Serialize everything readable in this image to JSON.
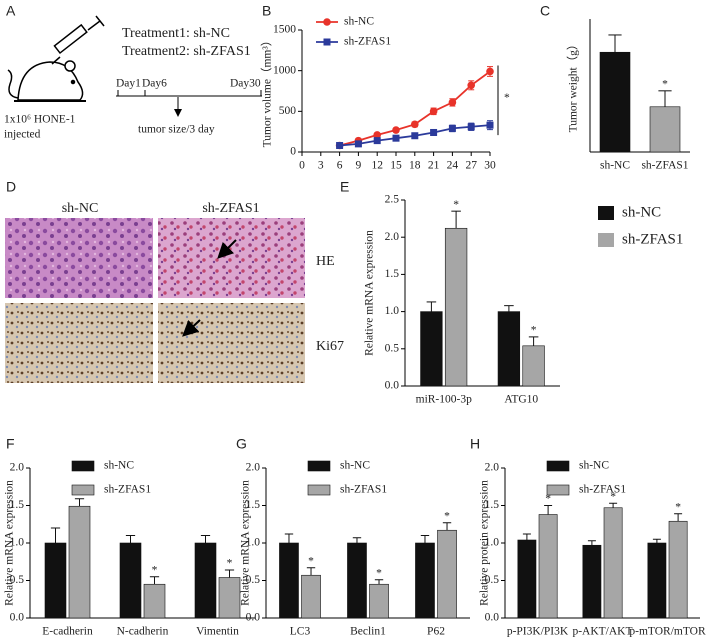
{
  "panels": {
    "A": {
      "label": "A",
      "treatments": [
        "Treatment1: sh-NC",
        "Treatment2: sh-ZFAS1"
      ],
      "days": [
        "Day1",
        "Day6",
        "Day30"
      ],
      "injection": [
        "1x10⁶ HONE-1",
        "injected"
      ],
      "measure": "tumor size/3 day"
    },
    "D": {
      "label": "D",
      "columns": [
        "sh-NC",
        "sh-ZFAS1"
      ],
      "rows": [
        "HE",
        "Ki67"
      ]
    }
  },
  "chart_data": [
    {
      "panel": "B",
      "type": "line",
      "ylabel": "Tumor volume（mm³）",
      "x": [
        6,
        9,
        12,
        15,
        18,
        21,
        24,
        27,
        30
      ],
      "series": [
        {
          "name": "sh-NC",
          "color": "#e8332a",
          "marker": "circle",
          "values": [
            80,
            140,
            210,
            270,
            340,
            500,
            610,
            820,
            990
          ],
          "errors": [
            10,
            15,
            20,
            25,
            30,
            40,
            45,
            55,
            60
          ]
        },
        {
          "name": "sh-ZFAS1",
          "color": "#2b3a9b",
          "marker": "square",
          "values": [
            80,
            100,
            140,
            170,
            200,
            240,
            290,
            310,
            330
          ],
          "errors": [
            10,
            12,
            15,
            20,
            25,
            35,
            40,
            45,
            55
          ]
        }
      ],
      "xlim": [
        0,
        30
      ],
      "xticks": [
        0,
        3,
        6,
        9,
        12,
        15,
        18,
        21,
        24,
        27,
        30
      ],
      "ylim": [
        0,
        1500
      ],
      "yticks": [
        0,
        500,
        1000,
        1500
      ],
      "legend": "upper left",
      "annotation": "*"
    },
    {
      "panel": "C",
      "type": "bar",
      "ylabel": "Tumor weight（g）",
      "categories": [
        "sh-NC",
        "sh-ZFAS1"
      ],
      "values": [
        0.75,
        0.34
      ],
      "errors": [
        0.13,
        0.12
      ],
      "colors": [
        "#111111",
        "#a6a6a6"
      ],
      "markers": [
        null,
        "*"
      ],
      "ylim": [
        0,
        1
      ]
    },
    {
      "panel": "E",
      "type": "bar",
      "ylabel": "Relative mRNA expression",
      "categories": [
        "miR-100-3p",
        "ATG10"
      ],
      "series": [
        {
          "name": "sh-NC",
          "color": "#111111",
          "values": [
            1.0,
            1.0
          ],
          "errors": [
            0.13,
            0.08
          ]
        },
        {
          "name": "sh-ZFAS1",
          "color": "#a6a6a6",
          "values": [
            2.12,
            0.54
          ],
          "errors": [
            0.23,
            0.12
          ],
          "markers": [
            "*",
            "*"
          ]
        }
      ],
      "ylim": [
        0,
        2.5
      ],
      "yticks": [
        {
          "value": 0,
          "label": "0.0"
        },
        0.5,
        {
          "value": 1,
          "label": "1.0"
        },
        1.5,
        {
          "value": 2,
          "label": "2.0"
        },
        2.5
      ],
      "legend": "outside right"
    },
    {
      "panel": "F",
      "type": "bar",
      "ylabel": "Relative mRNA expression",
      "categories": [
        "E-cadherin",
        "N-cadherin",
        "Vimentin"
      ],
      "series": [
        {
          "name": "sh-NC",
          "color": "#111111",
          "values": [
            1.0,
            1.0,
            1.0
          ],
          "errors": [
            0.2,
            0.1,
            0.1
          ]
        },
        {
          "name": "sh-ZFAS1",
          "color": "#a6a6a6",
          "values": [
            1.49,
            0.45,
            0.54
          ],
          "errors": [
            0.1,
            0.1,
            0.1
          ],
          "markers": [
            "*",
            "*",
            "*"
          ]
        }
      ],
      "ylim": [
        0,
        2
      ],
      "yticks": [
        {
          "value": 0,
          "label": "0.0"
        },
        0.5,
        {
          "value": 1,
          "label": "1.0"
        },
        1.5,
        {
          "value": 2,
          "label": "2.0"
        }
      ],
      "legend": "upper center"
    },
    {
      "panel": "G",
      "type": "bar",
      "ylabel": "Relative mRNA expression",
      "categories": [
        "LC3",
        "Beclin1",
        "P62"
      ],
      "series": [
        {
          "name": "sh-NC",
          "color": "#111111",
          "values": [
            1.0,
            1.0,
            1.0
          ],
          "errors": [
            0.12,
            0.07,
            0.1
          ]
        },
        {
          "name": "sh-ZFAS1",
          "color": "#a6a6a6",
          "values": [
            0.57,
            0.45,
            1.17
          ],
          "errors": [
            0.1,
            0.06,
            0.1
          ],
          "markers": [
            "*",
            "*",
            "*"
          ]
        }
      ],
      "ylim": [
        0,
        2
      ],
      "yticks": [
        {
          "value": 0,
          "label": "0.0"
        },
        0.5,
        {
          "value": 1,
          "label": "1.0"
        },
        1.5,
        {
          "value": 2,
          "label": "2.0"
        }
      ],
      "legend": "upper center"
    },
    {
      "panel": "H",
      "type": "bar",
      "ylabel": "Relative protein expression",
      "categories": [
        "p-PI3K/PI3K",
        "p-AKT/AKT",
        "p-mTOR/mTOR"
      ],
      "series": [
        {
          "name": "sh-NC",
          "color": "#111111",
          "values": [
            1.04,
            0.97,
            1.0
          ],
          "errors": [
            0.08,
            0.06,
            0.05
          ]
        },
        {
          "name": "sh-ZFAS1",
          "color": "#a6a6a6",
          "values": [
            1.38,
            1.47,
            1.29
          ],
          "errors": [
            0.12,
            0.06,
            0.1
          ],
          "markers": [
            "*",
            "*",
            "*"
          ]
        }
      ],
      "ylim": [
        0,
        2
      ],
      "yticks": [
        {
          "value": 0,
          "label": "0.0"
        },
        0.5,
        {
          "value": 1,
          "label": "1.0"
        },
        1.5,
        {
          "value": 2,
          "label": "2.0"
        }
      ],
      "legend": "upper center"
    }
  ]
}
